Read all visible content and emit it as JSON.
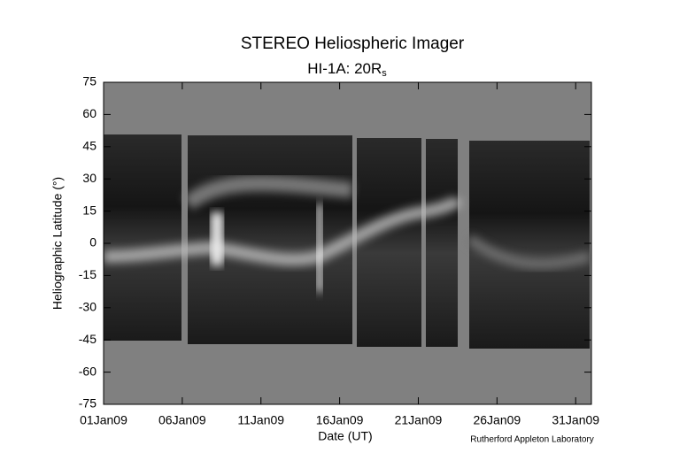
{
  "chart_data": {
    "type": "image",
    "title": "STEREO Heliospheric Imager",
    "subtitle": "HI-1A: 20R",
    "subtitle_subscript": "s",
    "x_label": "Date (UT)",
    "y_label": "Heliographic Latitude (°)",
    "annotation": "Rutherford Appleton Laboratory",
    "xlim": [
      "2009-01-01",
      "2009-02-01"
    ],
    "xticks": [
      {
        "value": "2009-01-01",
        "label": "01Jan09"
      },
      {
        "value": "2009-01-06",
        "label": "06Jan09"
      },
      {
        "value": "2009-01-11",
        "label": "11Jan09"
      },
      {
        "value": "2009-01-16",
        "label": "16Jan09"
      },
      {
        "value": "2009-01-21",
        "label": "21Jan09"
      },
      {
        "value": "2009-01-26",
        "label": "26Jan09"
      },
      {
        "value": "2009-01-31",
        "label": "31Jan09"
      }
    ],
    "ylim": [
      -75,
      75
    ],
    "yticks": [
      -75,
      -60,
      -45,
      -30,
      -15,
      0,
      15,
      30,
      45,
      60,
      75
    ]
  }
}
